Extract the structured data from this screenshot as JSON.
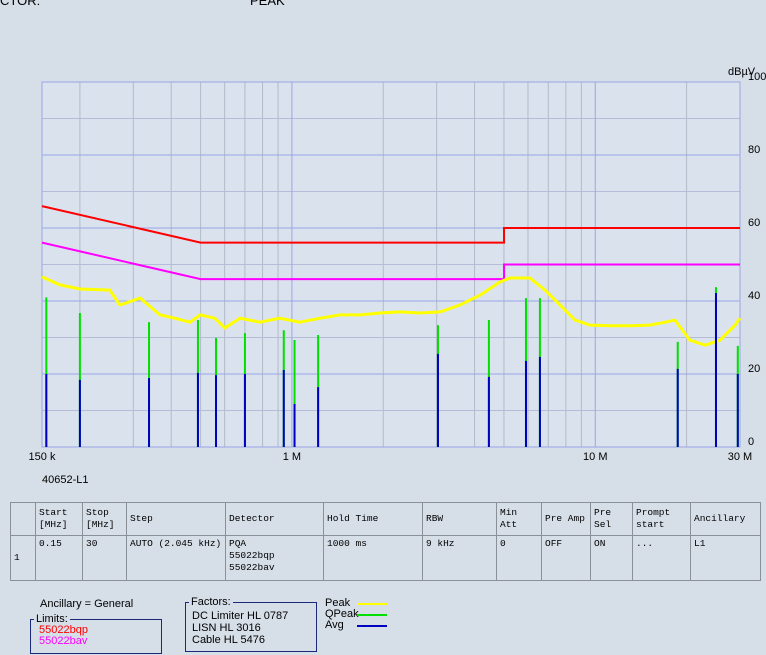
{
  "header": {
    "left": "CTOR:",
    "right": "PEAK"
  },
  "chart_data": {
    "type": "line",
    "xscale": "log",
    "y_label": "dBµV",
    "caption": "40652-L1",
    "xlim": [
      0.15,
      30
    ],
    "ylim": [
      0,
      100
    ],
    "xticks": [
      {
        "value": 0.15,
        "label": "150 k"
      },
      {
        "value": 1,
        "label": "1 M"
      },
      {
        "value": 10,
        "label": "10 M"
      },
      {
        "value": 30,
        "label": "30 M"
      }
    ],
    "xminor": [
      0.2,
      0.3,
      0.4,
      0.5,
      0.6,
      0.7,
      0.8,
      0.9,
      2,
      3,
      4,
      5,
      6,
      7,
      8,
      9,
      20
    ],
    "yticks": [
      0,
      20,
      40,
      60,
      80,
      100
    ],
    "yminor": [
      10,
      30,
      50,
      70,
      90
    ],
    "grid": true,
    "series": [
      {
        "name": "55022bqp",
        "kind": "line",
        "color": "#ff0000",
        "x": [
          0.15,
          0.5,
          5,
          5,
          30
        ],
        "values": [
          66,
          56,
          56,
          60,
          60
        ]
      },
      {
        "name": "55022bav",
        "kind": "line",
        "color": "#ff00ff",
        "x": [
          0.15,
          0.5,
          5,
          5,
          30
        ],
        "values": [
          56,
          46,
          46,
          50,
          50
        ]
      },
      {
        "name": "Peak",
        "kind": "line",
        "color": "#ffff00",
        "x": [
          0.15,
          0.172,
          0.2,
          0.251,
          0.271,
          0.316,
          0.367,
          0.411,
          0.461,
          0.498,
          0.557,
          0.601,
          0.674,
          0.785,
          0.913,
          1.06,
          1.24,
          1.44,
          1.68,
          1.95,
          2.27,
          2.64,
          3.08,
          3.58,
          4.17,
          4.85,
          5.23,
          6.09,
          6.83,
          7.65,
          8.57,
          9.6,
          11.2,
          13,
          15.1,
          17,
          18.3,
          20.5,
          23,
          25.8,
          28.9,
          30
        ],
        "values": [
          46.6,
          44.4,
          43.3,
          43.0,
          38.9,
          40.8,
          36.2,
          35.3,
          34.2,
          36.2,
          35.3,
          32.6,
          35.3,
          34.2,
          35.3,
          34.2,
          35.3,
          36.2,
          36.2,
          36.7,
          37.0,
          36.7,
          37.0,
          38.9,
          41.6,
          45.2,
          46.3,
          46.3,
          43.0,
          38.9,
          34.8,
          33.4,
          33.2,
          33.2,
          33.4,
          34.2,
          34.8,
          29.3,
          27.9,
          29.3,
          33.4,
          35.3
        ]
      },
      {
        "name": "QPeak",
        "kind": "stem",
        "color": "#00e000",
        "x": [
          0.155,
          0.2,
          0.338,
          0.49,
          0.562,
          0.7,
          0.94,
          1.02,
          1.22,
          3.03,
          4.46,
          5.91,
          6.57,
          18.7,
          25,
          29.5
        ],
        "values": [
          41,
          36.7,
          34.2,
          34.8,
          29.9,
          31.2,
          32,
          29.3,
          30.7,
          33.4,
          34.8,
          40.8,
          40.8,
          28.8,
          43.8,
          27.7
        ]
      },
      {
        "name": "Avg",
        "kind": "stem",
        "color": "#0000c0",
        "x": [
          0.155,
          0.2,
          0.338,
          0.49,
          0.562,
          0.7,
          0.94,
          1.02,
          1.22,
          3.03,
          4.46,
          5.91,
          6.57,
          18.7,
          25,
          29.5
        ],
        "values": [
          20,
          18.4,
          18.9,
          20.3,
          19.7,
          20,
          21.1,
          11.8,
          16.4,
          25.5,
          19.2,
          23.6,
          24.7,
          21.4,
          42.2,
          20
        ]
      }
    ]
  },
  "table": {
    "columns": [
      "",
      "Start [MHz]",
      "Stop [MHz]",
      "Step",
      "Detector",
      "Hold Time",
      "RBW",
      "Min Att",
      "Pre Amp",
      "Pre Sel",
      "Prompt start",
      "Ancillary"
    ],
    "rows": [
      [
        "1",
        "0.15",
        "30",
        "AUTO (2.045 kHz)",
        [
          "PQA",
          "55022bqp",
          "55022bav"
        ],
        "1000 ms",
        "9 kHz",
        "0",
        "OFF",
        "ON",
        "...",
        "L1"
      ]
    ]
  },
  "footer": {
    "ancillary": "Ancillary = General",
    "limits_title": "Limits:",
    "factors_title": "Factors:",
    "factors": [
      "DC Limiter HL 0787",
      "LISN HL 3016",
      "Cable HL 5476"
    ]
  }
}
